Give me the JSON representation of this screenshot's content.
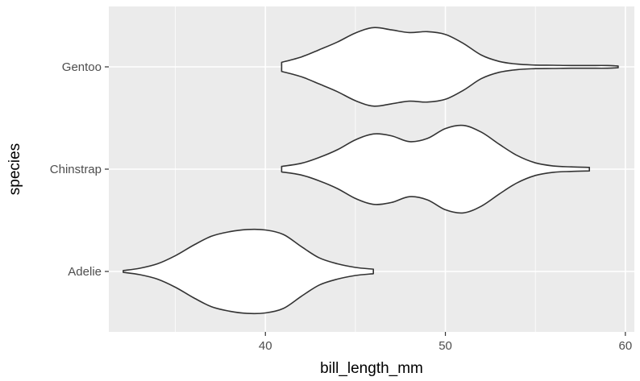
{
  "chart_data": {
    "type": "violin",
    "orientation": "horizontal",
    "xlabel": "bill_length_mm",
    "ylabel": "species",
    "xlim": [
      31.3,
      60.5
    ],
    "x_ticks": [
      40,
      50,
      60
    ],
    "x_minor_ticks": [
      35,
      45,
      55
    ],
    "categories": [
      "Adelie",
      "Chinstrap",
      "Gentoo"
    ],
    "grid": true,
    "legend": "none",
    "colors": {
      "panel": "#ebebeb",
      "grid": "#ffffff",
      "violin_fill": "#ffffff",
      "violin_stroke": "#333333",
      "tick_text": "#4d4d4d"
    },
    "series": [
      {
        "category": "Adelie",
        "range": [
          32.1,
          46.0
        ],
        "density_profile": [
          [
            32.1,
            0.02
          ],
          [
            33.0,
            0.07
          ],
          [
            34.0,
            0.17
          ],
          [
            35.0,
            0.35
          ],
          [
            36.0,
            0.58
          ],
          [
            37.0,
            0.78
          ],
          [
            38.0,
            0.88
          ],
          [
            39.0,
            0.93
          ],
          [
            40.0,
            0.92
          ],
          [
            41.0,
            0.82
          ],
          [
            42.0,
            0.55
          ],
          [
            43.0,
            0.3
          ],
          [
            44.0,
            0.17
          ],
          [
            45.0,
            0.09
          ],
          [
            46.0,
            0.05
          ]
        ]
      },
      {
        "category": "Chinstrap",
        "range": [
          40.9,
          58.0
        ],
        "density_profile": [
          [
            40.9,
            0.06
          ],
          [
            42.0,
            0.13
          ],
          [
            43.0,
            0.26
          ],
          [
            44.0,
            0.43
          ],
          [
            45.0,
            0.65
          ],
          [
            46.0,
            0.78
          ],
          [
            47.0,
            0.74
          ],
          [
            48.0,
            0.61
          ],
          [
            49.0,
            0.68
          ],
          [
            50.0,
            0.9
          ],
          [
            51.0,
            0.97
          ],
          [
            52.0,
            0.82
          ],
          [
            53.0,
            0.55
          ],
          [
            54.0,
            0.3
          ],
          [
            55.0,
            0.14
          ],
          [
            56.0,
            0.07
          ],
          [
            57.0,
            0.05
          ],
          [
            58.0,
            0.04
          ]
        ]
      },
      {
        "category": "Gentoo",
        "range": [
          40.9,
          59.6
        ],
        "density_profile": [
          [
            40.9,
            0.1
          ],
          [
            42.0,
            0.22
          ],
          [
            43.0,
            0.38
          ],
          [
            44.0,
            0.55
          ],
          [
            45.0,
            0.75
          ],
          [
            46.0,
            0.87
          ],
          [
            47.0,
            0.82
          ],
          [
            48.0,
            0.76
          ],
          [
            49.0,
            0.78
          ],
          [
            50.0,
            0.72
          ],
          [
            51.0,
            0.52
          ],
          [
            52.0,
            0.26
          ],
          [
            53.0,
            0.12
          ],
          [
            54.0,
            0.06
          ],
          [
            55.0,
            0.04
          ],
          [
            56.0,
            0.035
          ],
          [
            57.0,
            0.03
          ],
          [
            58.0,
            0.03
          ],
          [
            59.0,
            0.03
          ],
          [
            59.6,
            0.02
          ]
        ]
      }
    ]
  }
}
